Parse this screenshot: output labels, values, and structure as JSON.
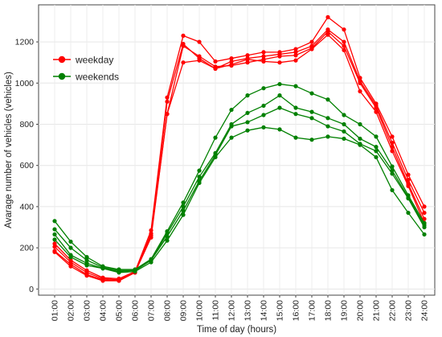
{
  "chart_data": {
    "type": "line",
    "xlabel": "Time of day (hours)",
    "ylabel": "Avarage number of vehicles (vehicles)",
    "categories": [
      "01:00",
      "02:00",
      "03:00",
      "04:00",
      "05:00",
      "06:00",
      "07:00",
      "08:00",
      "09:00",
      "10:00",
      "11:00",
      "12:00",
      "13:00",
      "14:00",
      "15:00",
      "16:00",
      "17:00",
      "18:00",
      "19:00",
      "20:00",
      "21:00",
      "22:00",
      "23:00",
      "24:00"
    ],
    "ylim": [
      -30,
      1380
    ],
    "yticks": [
      0,
      200,
      400,
      600,
      800,
      1000,
      1200
    ],
    "legend": {
      "position": "top-left",
      "entries": [
        {
          "label": "weekday",
          "color": "#ff0000"
        },
        {
          "label": "weekends",
          "color": "#008000"
        }
      ]
    },
    "groups": [
      {
        "label": "weekday",
        "color": "#ff0000",
        "lines": [
          [
            220,
            140,
            90,
            55,
            50,
            85,
            285,
            930,
            1230,
            1200,
            1105,
            1120,
            1135,
            1150,
            1150,
            1165,
            1200,
            1320,
            1260,
            1025,
            900,
            740,
            555,
            400
          ],
          [
            205,
            130,
            80,
            50,
            45,
            80,
            270,
            910,
            1190,
            1120,
            1070,
            1105,
            1120,
            1130,
            1140,
            1150,
            1180,
            1260,
            1200,
            1010,
            890,
            710,
            530,
            370
          ],
          [
            185,
            120,
            70,
            45,
            40,
            80,
            260,
            850,
            1180,
            1130,
            1080,
            1085,
            1100,
            1115,
            1130,
            1135,
            1170,
            1250,
            1180,
            1000,
            880,
            690,
            510,
            340
          ],
          [
            180,
            110,
            65,
            40,
            40,
            80,
            250,
            850,
            1100,
            1110,
            1070,
            1090,
            1115,
            1105,
            1100,
            1110,
            1165,
            1235,
            1160,
            960,
            860,
            670,
            500,
            320
          ]
        ]
      },
      {
        "label": "weekends",
        "color": "#008000",
        "lines": [
          [
            330,
            230,
            155,
            110,
            95,
            95,
            145,
            280,
            420,
            575,
            735,
            870,
            940,
            975,
            995,
            985,
            950,
            920,
            845,
            800,
            740,
            595,
            455,
            320
          ],
          [
            290,
            200,
            140,
            105,
            90,
            90,
            140,
            270,
            400,
            545,
            660,
            800,
            855,
            890,
            940,
            880,
            860,
            830,
            800,
            730,
            690,
            575,
            445,
            310
          ],
          [
            265,
            165,
            125,
            100,
            85,
            90,
            140,
            255,
            380,
            525,
            650,
            790,
            810,
            845,
            880,
            850,
            830,
            790,
            765,
            705,
            670,
            560,
            440,
            300
          ],
          [
            240,
            155,
            115,
            100,
            80,
            85,
            130,
            235,
            360,
            515,
            640,
            735,
            770,
            785,
            775,
            735,
            725,
            740,
            730,
            700,
            640,
            480,
            370,
            265
          ]
        ]
      }
    ]
  }
}
